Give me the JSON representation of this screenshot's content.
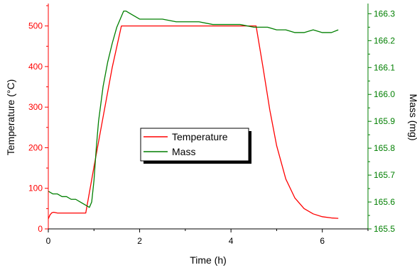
{
  "chart_data": {
    "type": "line",
    "xlabel": "Time (h)",
    "ylabel_left": "Temperature (°C)",
    "ylabel_right": "Mass (mg)",
    "xlim": [
      0,
      7
    ],
    "ylim_left": [
      0,
      550
    ],
    "ylim_right": [
      165.5,
      166.33
    ],
    "x_ticks": [
      0,
      2,
      4,
      6
    ],
    "y_left_ticks": [
      0,
      100,
      200,
      300,
      400,
      500
    ],
    "y_right_ticks": [
      165.5,
      165.6,
      165.7,
      165.8,
      165.9,
      166.0,
      166.1,
      166.2,
      166.3
    ],
    "y_right_tick_labels": [
      "165.5",
      "165.6",
      "165.7",
      "165.8",
      "165.9",
      "166.0",
      "166.1",
      "166.2",
      "166.3"
    ],
    "legend_position": "center",
    "colors": {
      "temperature": "#ff0000",
      "mass": "#007f00",
      "axes": "#000000"
    },
    "series": [
      {
        "name": "Temperature",
        "axis": "left",
        "color": "#ff0000",
        "x": [
          0,
          0.04,
          0.08,
          0.12,
          0.2,
          0.3,
          0.5,
          0.7,
          0.82,
          1.0,
          1.2,
          1.4,
          1.6,
          1.7,
          2.5,
          3.5,
          4.5,
          4.55,
          4.7,
          4.85,
          5.0,
          5.2,
          5.4,
          5.6,
          5.8,
          6.0,
          6.2,
          6.35
        ],
        "values": [
          25,
          35,
          40,
          41,
          39,
          39,
          39,
          39,
          39,
          153,
          276,
          398,
          500,
          500,
          500,
          500,
          500,
          500,
          399,
          293,
          205,
          123,
          76,
          50,
          37,
          30,
          27,
          26
        ]
      },
      {
        "name": "Mass",
        "axis": "right",
        "color": "#007f00",
        "x": [
          0,
          0.1,
          0.2,
          0.3,
          0.4,
          0.5,
          0.6,
          0.7,
          0.8,
          0.9,
          0.95,
          1.0,
          1.05,
          1.1,
          1.2,
          1.3,
          1.4,
          1.5,
          1.6,
          1.65,
          1.7,
          1.8,
          1.9,
          2.0,
          2.2,
          2.5,
          2.8,
          3.0,
          3.3,
          3.6,
          3.9,
          4.2,
          4.5,
          4.8,
          5.0,
          5.2,
          5.4,
          5.6,
          5.8,
          6.0,
          6.2,
          6.35
        ],
        "values": [
          165.64,
          165.63,
          165.63,
          165.62,
          165.62,
          165.61,
          165.61,
          165.6,
          165.59,
          165.58,
          165.6,
          165.68,
          165.8,
          165.9,
          166.03,
          166.12,
          166.19,
          166.25,
          166.29,
          166.31,
          166.31,
          166.3,
          166.29,
          166.28,
          166.28,
          166.28,
          166.27,
          166.27,
          166.27,
          166.26,
          166.26,
          166.26,
          166.25,
          166.25,
          166.24,
          166.24,
          166.23,
          166.23,
          166.24,
          166.23,
          166.23,
          166.24
        ]
      }
    ]
  }
}
